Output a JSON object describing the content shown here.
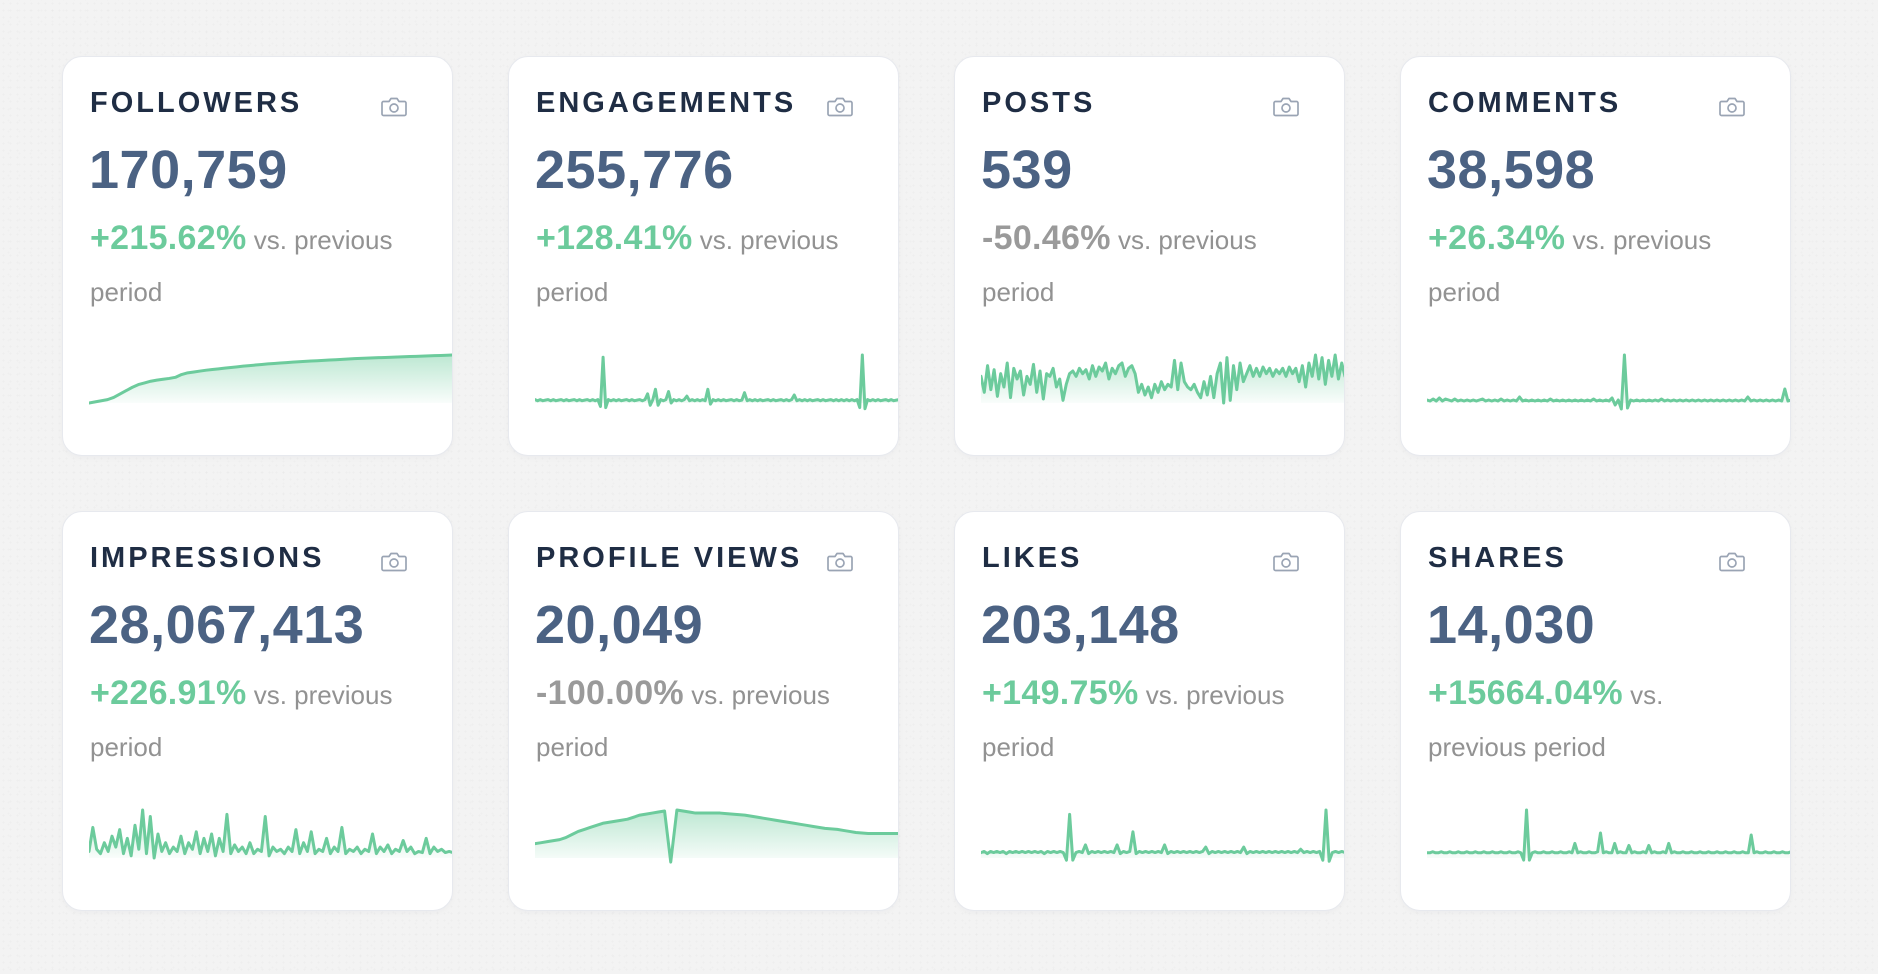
{
  "colors": {
    "accent": "#6ccb9c",
    "accent_fill_top": "#6ccb9c",
    "negative": "#9a9a9a",
    "title": "#1f2d44",
    "value": "#4b6283",
    "muted": "#929292",
    "icon": "#9aa4b4"
  },
  "icons": {
    "snapshot": "camera-icon"
  },
  "comparison_text": "vs. previous period",
  "cards": [
    {
      "key": "followers",
      "title": "FOLLOWERS",
      "value": "170,759",
      "change": "+215.62%",
      "trend": "up",
      "chart_data": {
        "type": "area",
        "values": [
          0,
          1,
          2,
          3,
          5,
          8,
          11,
          14,
          16.5,
          18,
          19.5,
          20.5,
          21.3,
          22,
          23,
          25.5,
          27,
          27.8,
          28.6,
          29.4,
          30,
          30.6,
          31.2,
          31.8,
          32.4,
          33,
          33.5,
          34,
          34.5,
          35,
          35.4,
          35.8,
          36.2,
          36.6,
          37,
          37.3,
          37.6,
          37.9,
          38.2,
          38.5,
          38.8,
          39.1,
          39.4,
          39.7,
          40,
          40.2,
          40.4,
          40.6,
          40.8,
          41,
          41.2,
          41.4,
          41.6,
          41.8,
          42,
          42.2,
          42.4,
          42.6,
          42.8,
          43
        ]
      }
    },
    {
      "key": "engagements",
      "title": "ENGAGEMENTS",
      "value": "255,776",
      "change": "+128.41%",
      "trend": "up",
      "chart_data": {
        "type": "area",
        "values": [
          3,
          2,
          3,
          2,
          2.5,
          3,
          2,
          3,
          2,
          2.5,
          3,
          2,
          3,
          2,
          2.5,
          3,
          2,
          3,
          2,
          2.5,
          3,
          2,
          3,
          2,
          3,
          -3,
          40,
          -4,
          3,
          2,
          3,
          2,
          3,
          2,
          2.5,
          3,
          2,
          3,
          2,
          2.5,
          3,
          2,
          3,
          8,
          -2,
          3,
          12,
          -2,
          3,
          2,
          3,
          10,
          0,
          3,
          2,
          3,
          2,
          3,
          6,
          2,
          3,
          2,
          3,
          2,
          3,
          2,
          12,
          -1,
          3,
          2,
          3,
          2,
          3,
          2,
          2.5,
          3,
          2,
          3,
          2,
          2.5,
          9,
          2,
          3,
          2,
          3,
          2,
          3,
          2,
          2.5,
          3,
          2,
          3,
          2,
          2.5,
          3,
          2,
          3,
          2,
          3,
          7,
          2,
          3,
          2,
          3,
          2,
          3,
          2,
          2.5,
          3,
          2,
          3,
          2,
          2.5,
          3,
          2,
          3,
          2,
          3,
          2,
          3,
          2,
          3,
          2,
          3,
          -4,
          42,
          -5,
          3,
          2,
          3,
          2,
          3,
          2,
          2.5,
          3,
          2,
          3,
          2,
          2.5,
          3
        ]
      }
    },
    {
      "key": "posts",
      "title": "POSTS",
      "value": "539",
      "change": "-50.46%",
      "trend": "down",
      "chart_data": {
        "type": "area",
        "values": [
          20,
          8,
          28,
          10,
          25,
          5,
          22,
          12,
          30,
          4,
          26,
          18,
          24,
          6,
          20,
          14,
          29,
          8,
          24,
          3,
          22,
          20,
          26,
          12,
          18,
          2,
          14,
          22,
          24,
          20,
          26,
          22,
          25,
          18,
          28,
          20,
          27,
          24,
          30,
          18,
          26,
          22,
          28,
          30,
          20,
          26,
          28,
          22,
          8,
          14,
          6,
          12,
          4,
          14,
          8,
          16,
          10,
          14,
          12,
          32,
          10,
          30,
          16,
          12,
          10,
          14,
          8,
          4,
          16,
          6,
          20,
          4,
          22,
          30,
          0,
          34,
          2,
          28,
          10,
          30,
          16,
          22,
          28,
          20,
          26,
          20,
          27,
          22,
          26,
          20,
          25,
          22,
          26,
          20,
          27,
          22,
          26,
          16,
          28,
          12,
          30,
          20,
          36,
          18,
          34,
          14,
          32,
          20,
          36,
          18,
          30,
          20
        ]
      }
    },
    {
      "key": "comments",
      "title": "COMMENTS",
      "value": "38,598",
      "change": "+26.34%",
      "trend": "up",
      "chart_data": {
        "type": "area",
        "values": [
          3,
          2,
          4,
          2,
          5,
          2,
          4,
          3,
          2,
          4,
          2,
          3,
          2,
          3,
          2,
          3,
          2,
          3,
          4,
          2,
          3,
          2,
          3,
          2,
          4,
          2,
          3,
          2,
          3,
          2,
          6,
          2,
          3,
          2,
          3,
          2,
          3,
          2,
          3,
          2,
          4,
          2,
          3,
          2,
          3,
          2,
          3,
          2,
          3,
          2,
          3,
          2,
          3,
          2,
          4,
          2,
          3,
          2,
          3,
          2,
          5,
          -2,
          3,
          -6,
          48,
          -5,
          3,
          2,
          3,
          2,
          3,
          2,
          3,
          2,
          3,
          2,
          4,
          2,
          3,
          2,
          3,
          2,
          3,
          2,
          3,
          2,
          3,
          2,
          3,
          2,
          3,
          2,
          3,
          2,
          3,
          2,
          3,
          2,
          3,
          2,
          3,
          2,
          3,
          2,
          6,
          2,
          3,
          2,
          3,
          2,
          3,
          2,
          3,
          2,
          3,
          2,
          14,
          2,
          3
        ]
      }
    },
    {
      "key": "impressions",
      "title": "IMPRESSIONS",
      "value": "28,067,413",
      "change": "+226.91%",
      "trend": "up",
      "chart_data": {
        "type": "area",
        "values": [
          6,
          28,
          8,
          4,
          14,
          6,
          20,
          10,
          26,
          4,
          18,
          2,
          30,
          8,
          44,
          4,
          38,
          0,
          22,
          6,
          14,
          4,
          10,
          6,
          20,
          4,
          14,
          8,
          24,
          4,
          18,
          6,
          22,
          2,
          18,
          6,
          40,
          4,
          12,
          6,
          10,
          4,
          14,
          4,
          8,
          6,
          38,
          2,
          10,
          6,
          8,
          4,
          10,
          6,
          26,
          4,
          14,
          6,
          24,
          4,
          8,
          6,
          18,
          4,
          10,
          6,
          28,
          4,
          8,
          6,
          10,
          4,
          8,
          6,
          22,
          4,
          10,
          6,
          12,
          4,
          8,
          6,
          16,
          6,
          10,
          4,
          6,
          5,
          18,
          4,
          10,
          6,
          8,
          5,
          6,
          5
        ]
      }
    },
    {
      "key": "profile-views",
      "title": "PROFILE VIEWS",
      "value": "20,049",
      "change": "-100.00%",
      "trend": "down",
      "chart_data": {
        "type": "area",
        "values": [
          14,
          15,
          16,
          17,
          18,
          20,
          23,
          26,
          28,
          30,
          32,
          34,
          35,
          36,
          37,
          38,
          40,
          42,
          43,
          44,
          45,
          46,
          -4,
          47,
          46,
          45,
          44,
          44,
          44,
          44,
          44,
          43.5,
          43,
          42.5,
          42,
          41,
          40,
          39,
          38,
          37,
          36,
          35,
          34,
          33,
          32,
          31,
          30,
          29,
          28.5,
          28,
          27,
          26,
          25,
          24.5,
          24,
          24,
          24,
          24,
          24,
          24
        ]
      }
    },
    {
      "key": "likes",
      "title": "LIKES",
      "value": "203,148",
      "change": "+149.75%",
      "trend": "up",
      "chart_data": {
        "type": "area",
        "values": [
          5,
          6,
          4,
          6,
          5,
          6,
          5,
          6,
          4,
          6,
          5,
          6,
          5,
          6,
          5,
          6,
          5,
          6,
          5,
          6,
          4,
          6,
          5,
          6,
          5,
          6,
          5,
          -2,
          40,
          -2,
          5,
          6,
          5,
          12,
          4,
          6,
          5,
          6,
          5,
          6,
          5,
          6,
          5,
          12,
          4,
          6,
          5,
          6,
          24,
          4,
          6,
          5,
          6,
          5,
          6,
          5,
          6,
          5,
          12,
          4,
          6,
          5,
          6,
          5,
          6,
          5,
          6,
          5,
          6,
          5,
          6,
          10,
          4,
          6,
          5,
          6,
          5,
          6,
          5,
          6,
          5,
          6,
          5,
          10,
          4,
          6,
          5,
          6,
          5,
          6,
          5,
          6,
          5,
          6,
          5,
          6,
          5,
          6,
          5,
          6,
          5,
          8,
          5,
          6,
          5,
          6,
          5,
          6,
          -2,
          44,
          -3,
          5,
          6,
          5,
          6,
          5
        ]
      }
    },
    {
      "key": "shares",
      "title": "SHARES",
      "value": "14,030",
      "change": "+15664.04%",
      "trend": "up",
      "chart_data": {
        "type": "area",
        "values": [
          5,
          5,
          6,
          5,
          5,
          6,
          5,
          5,
          6,
          5,
          5,
          6,
          5,
          5,
          6,
          5,
          5,
          6,
          5,
          5,
          6,
          5,
          5,
          6,
          5,
          5,
          6,
          5,
          5,
          6,
          5,
          5,
          6,
          5,
          -2,
          46,
          -2,
          5,
          6,
          5,
          5,
          6,
          5,
          5,
          6,
          5,
          5,
          6,
          5,
          5,
          6,
          5,
          14,
          5,
          6,
          5,
          5,
          6,
          5,
          5,
          6,
          24,
          5,
          6,
          5,
          5,
          14,
          5,
          6,
          5,
          5,
          12,
          5,
          6,
          5,
          5,
          6,
          5,
          12,
          5,
          6,
          5,
          5,
          6,
          5,
          14,
          5,
          6,
          5,
          5,
          6,
          5,
          5,
          6,
          5,
          5,
          6,
          5,
          5,
          6,
          5,
          5,
          6,
          5,
          5,
          6,
          5,
          5,
          6,
          5,
          5,
          6,
          5,
          5,
          22,
          5,
          6,
          5,
          5,
          6,
          5,
          5,
          6,
          5,
          5,
          6,
          5,
          5,
          6
        ]
      }
    }
  ]
}
